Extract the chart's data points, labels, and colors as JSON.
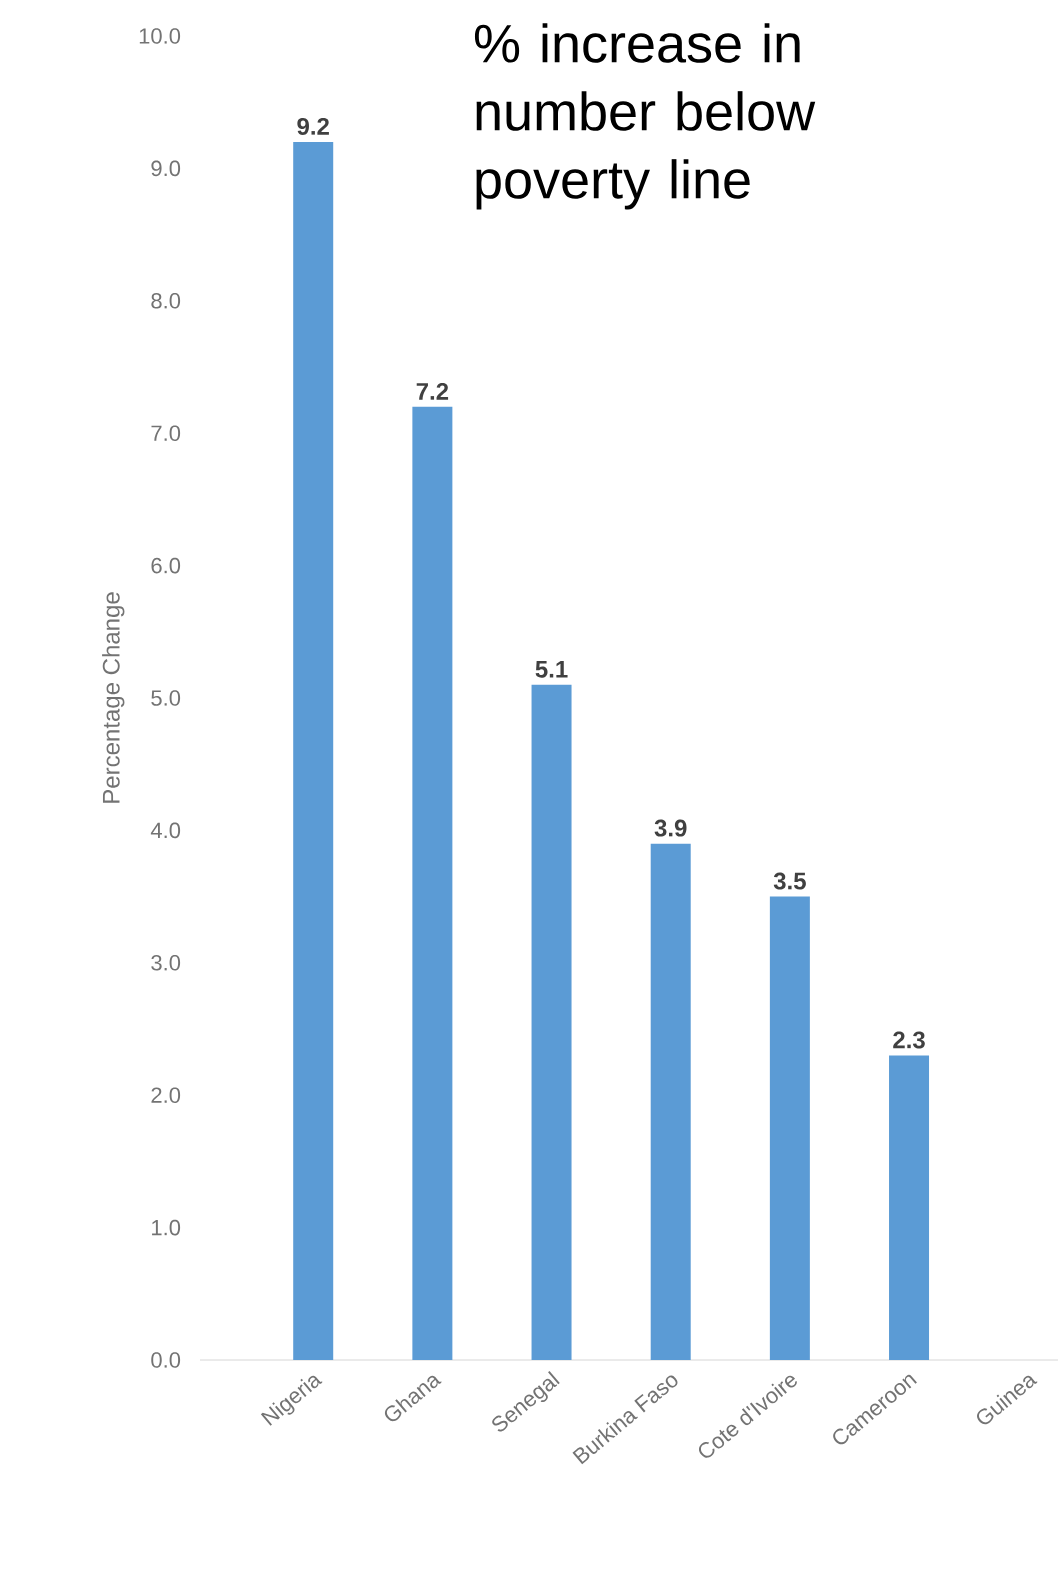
{
  "chart_data": {
    "type": "bar",
    "title": "% increase in number below poverty line",
    "ylabel": "Percentage Change",
    "categories": [
      "Nigeria",
      "Ghana",
      "Senegal",
      "Burkina Faso",
      "Cote d'Ivoire",
      "Cameroon",
      "Guinea"
    ],
    "values": [
      9.2,
      7.2,
      5.1,
      3.9,
      3.5,
      2.3,
      null
    ],
    "value_labels": [
      "9.2",
      "7.2",
      "5.1",
      "3.9",
      "3.5",
      "2.3",
      null
    ],
    "color": "#5b9bd5",
    "ylim": [
      0,
      10
    ],
    "yticks": [
      {
        "value": 0,
        "label": "0.0"
      },
      {
        "value": 1,
        "label": "1.0"
      },
      {
        "value": 2,
        "label": "2.0"
      },
      {
        "value": 3,
        "label": "3.0"
      },
      {
        "value": 4,
        "label": "4.0"
      },
      {
        "value": 5,
        "label": "5.0"
      },
      {
        "value": 6,
        "label": "6.0"
      },
      {
        "value": 7,
        "label": "7.0"
      },
      {
        "value": 8,
        "label": "8.0"
      },
      {
        "value": 9,
        "label": "9.0"
      },
      {
        "value": 10,
        "label": "10.0"
      }
    ],
    "grid": false
  }
}
